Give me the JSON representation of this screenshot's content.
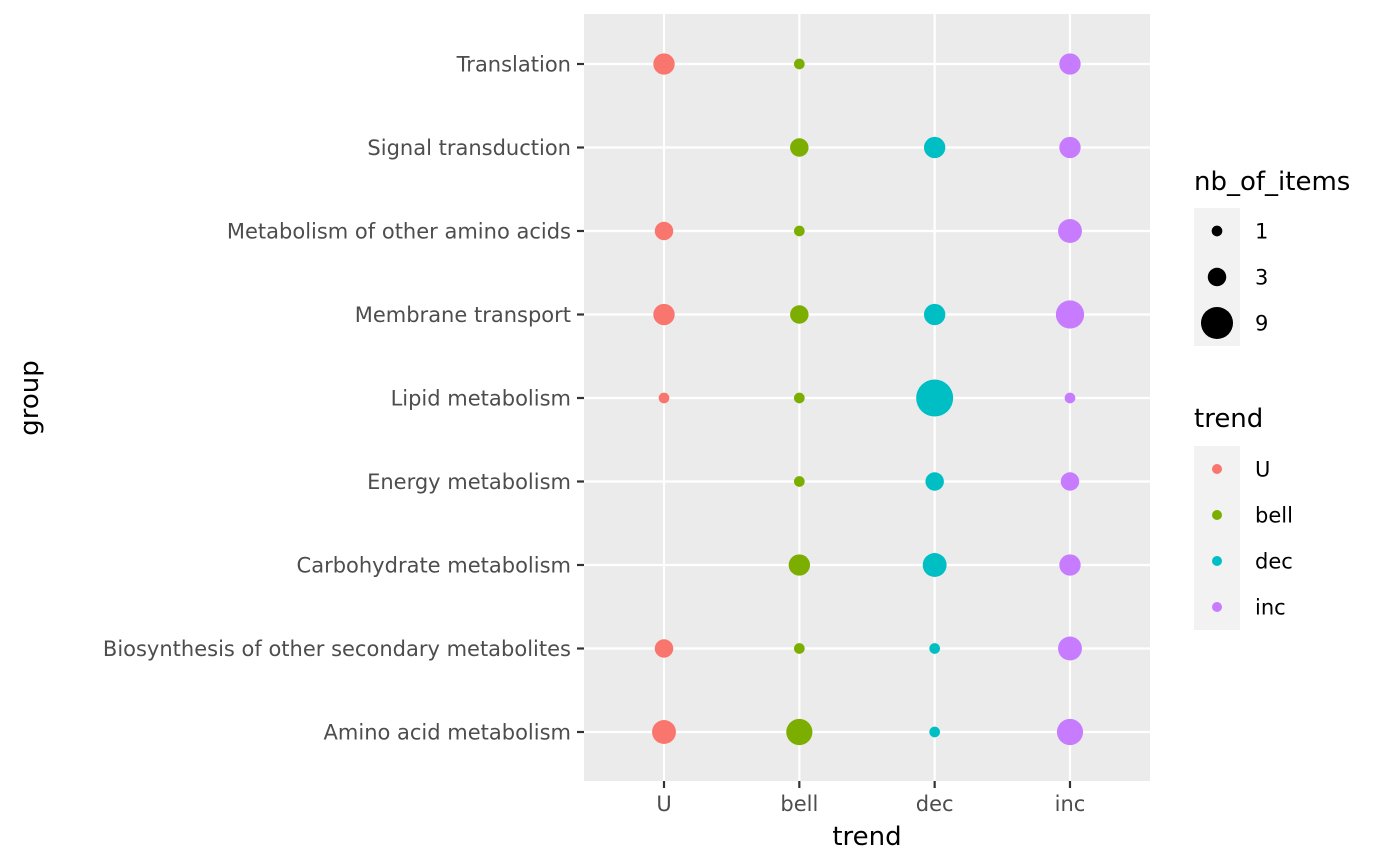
{
  "chart_data": {
    "type": "scatter",
    "xlabel": "trend",
    "ylabel": "group",
    "x_categories": [
      "U",
      "bell",
      "dec",
      "inc"
    ],
    "y_categories": [
      "Amino acid metabolism",
      "Biosynthesis of other secondary metabolites",
      "Carbohydrate metabolism",
      "Energy metabolism",
      "Lipid metabolism",
      "Membrane transport",
      "Metabolism of other amino acids",
      "Signal transduction",
      "Translation"
    ],
    "points": [
      {
        "group": "Translation",
        "trend": "U",
        "nb_of_items": 4
      },
      {
        "group": "Translation",
        "trend": "bell",
        "nb_of_items": 1
      },
      {
        "group": "Translation",
        "trend": "inc",
        "nb_of_items": 4
      },
      {
        "group": "Signal transduction",
        "trend": "bell",
        "nb_of_items": 3
      },
      {
        "group": "Signal transduction",
        "trend": "dec",
        "nb_of_items": 4
      },
      {
        "group": "Signal transduction",
        "trend": "inc",
        "nb_of_items": 4
      },
      {
        "group": "Metabolism of other amino acids",
        "trend": "U",
        "nb_of_items": 3
      },
      {
        "group": "Metabolism of other amino acids",
        "trend": "bell",
        "nb_of_items": 1
      },
      {
        "group": "Metabolism of other amino acids",
        "trend": "inc",
        "nb_of_items": 5
      },
      {
        "group": "Membrane transport",
        "trend": "U",
        "nb_of_items": 4
      },
      {
        "group": "Membrane transport",
        "trend": "bell",
        "nb_of_items": 3
      },
      {
        "group": "Membrane transport",
        "trend": "dec",
        "nb_of_items": 4
      },
      {
        "group": "Membrane transport",
        "trend": "inc",
        "nb_of_items": 7
      },
      {
        "group": "Lipid metabolism",
        "trend": "U",
        "nb_of_items": 1
      },
      {
        "group": "Lipid metabolism",
        "trend": "bell",
        "nb_of_items": 1
      },
      {
        "group": "Lipid metabolism",
        "trend": "dec",
        "nb_of_items": 12
      },
      {
        "group": "Lipid metabolism",
        "trend": "inc",
        "nb_of_items": 1
      },
      {
        "group": "Energy metabolism",
        "trend": "bell",
        "nb_of_items": 1
      },
      {
        "group": "Energy metabolism",
        "trend": "dec",
        "nb_of_items": 3
      },
      {
        "group": "Energy metabolism",
        "trend": "inc",
        "nb_of_items": 3
      },
      {
        "group": "Carbohydrate metabolism",
        "trend": "bell",
        "nb_of_items": 4
      },
      {
        "group": "Carbohydrate metabolism",
        "trend": "dec",
        "nb_of_items": 5
      },
      {
        "group": "Carbohydrate metabolism",
        "trend": "inc",
        "nb_of_items": 4
      },
      {
        "group": "Biosynthesis of other secondary metabolites",
        "trend": "U",
        "nb_of_items": 3
      },
      {
        "group": "Biosynthesis of other secondary metabolites",
        "trend": "bell",
        "nb_of_items": 1
      },
      {
        "group": "Biosynthesis of other secondary metabolites",
        "trend": "dec",
        "nb_of_items": 1
      },
      {
        "group": "Biosynthesis of other secondary metabolites",
        "trend": "inc",
        "nb_of_items": 5
      },
      {
        "group": "Amino acid metabolism",
        "trend": "U",
        "nb_of_items": 5
      },
      {
        "group": "Amino acid metabolism",
        "trend": "bell",
        "nb_of_items": 6
      },
      {
        "group": "Amino acid metabolism",
        "trend": "dec",
        "nb_of_items": 1
      },
      {
        "group": "Amino acid metabolism",
        "trend": "inc",
        "nb_of_items": 6
      }
    ],
    "colors": {
      "U": "#F8766D",
      "bell": "#7CAE00",
      "dec": "#00BFC4",
      "inc": "#C77CFF"
    },
    "size_legend": {
      "title": "nb_of_items",
      "values": [
        1,
        3,
        9
      ]
    },
    "color_legend": {
      "title": "trend",
      "entries": [
        "U",
        "bell",
        "dec",
        "inc"
      ]
    },
    "legend_position": "right",
    "grid": true,
    "panel_background": "#EBEBEB"
  }
}
